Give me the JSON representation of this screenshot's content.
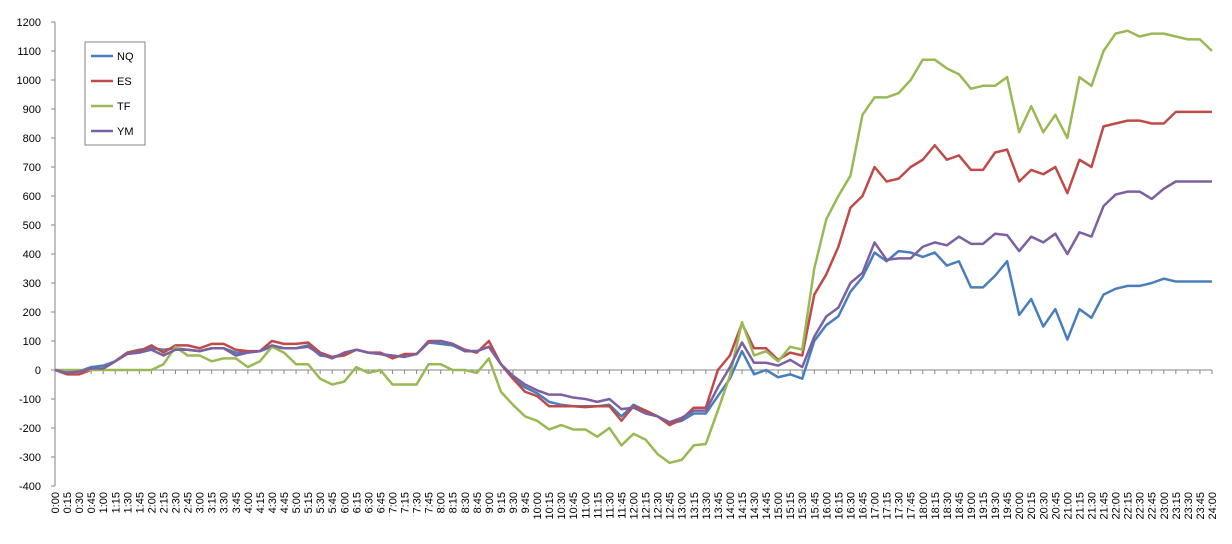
{
  "chart_data": {
    "type": "line",
    "categories": [
      "0:00",
      "0:15",
      "0:30",
      "0:45",
      "1:00",
      "1:15",
      "1:30",
      "1:45",
      "2:00",
      "2:15",
      "2:30",
      "2:45",
      "3:00",
      "3:15",
      "3:30",
      "3:45",
      "4:00",
      "4:15",
      "4:30",
      "4:45",
      "5:00",
      "5:15",
      "5:30",
      "5:45",
      "6:00",
      "6:15",
      "6:30",
      "6:45",
      "7:00",
      "7:15",
      "7:30",
      "7:45",
      "8:00",
      "8:15",
      "8:30",
      "8:45",
      "9:00",
      "9:15",
      "9:30",
      "9:45",
      "10:00",
      "10:15",
      "10:30",
      "10:45",
      "11:00",
      "11:15",
      "11:30",
      "11:45",
      "12:00",
      "12:15",
      "12:30",
      "12:45",
      "13:00",
      "13:15",
      "13:30",
      "13:45",
      "14:00",
      "14:15",
      "14:30",
      "14:45",
      "15:00",
      "15:15",
      "15:30",
      "15:45",
      "16:00",
      "16:15",
      "16:30",
      "16:45",
      "17:00",
      "17:15",
      "17:30",
      "17:45",
      "18:00",
      "18:15",
      "18:30",
      "18:45",
      "19:00",
      "19:15",
      "19:30",
      "19:45",
      "20:00",
      "20:15",
      "20:30",
      "20:45",
      "21:00",
      "21:15",
      "21:30",
      "21:45",
      "22:00",
      "22:15",
      "22:30",
      "22:45",
      "23:00",
      "23:15",
      "23:30",
      "23:45",
      "24:00"
    ],
    "series": [
      {
        "name": "NQ",
        "color": "#4a7ebb",
        "values": [
          0,
          -5,
          -5,
          10,
          15,
          30,
          60,
          70,
          75,
          70,
          75,
          70,
          65,
          75,
          75,
          60,
          60,
          65,
          80,
          75,
          75,
          85,
          50,
          45,
          55,
          70,
          60,
          55,
          45,
          50,
          55,
          95,
          90,
          85,
          65,
          65,
          80,
          20,
          -30,
          -60,
          -80,
          -110,
          -120,
          -125,
          -125,
          -125,
          -120,
          -160,
          -120,
          -140,
          -160,
          -185,
          -175,
          -150,
          -150,
          -90,
          -30,
          65,
          -15,
          0,
          -25,
          -15,
          -30,
          100,
          155,
          185,
          270,
          320,
          405,
          375,
          410,
          405,
          390,
          405,
          360,
          375,
          285,
          285,
          325,
          375,
          190,
          245,
          150,
          210,
          105,
          210,
          180,
          260,
          280,
          290,
          290,
          300,
          315,
          305,
          305,
          305,
          305
        ]
      },
      {
        "name": "ES",
        "color": "#be4b48",
        "values": [
          0,
          -15,
          -15,
          0,
          5,
          30,
          60,
          65,
          85,
          60,
          85,
          85,
          75,
          90,
          90,
          70,
          65,
          65,
          100,
          90,
          90,
          95,
          60,
          45,
          50,
          70,
          60,
          60,
          40,
          55,
          55,
          100,
          100,
          90,
          70,
          60,
          100,
          20,
          -30,
          -75,
          -90,
          -125,
          -125,
          -125,
          -128,
          -125,
          -125,
          -175,
          -125,
          -140,
          -160,
          -190,
          -170,
          -130,
          -130,
          0,
          50,
          160,
          75,
          75,
          35,
          60,
          50,
          260,
          330,
          425,
          560,
          600,
          700,
          650,
          660,
          700,
          725,
          775,
          725,
          740,
          690,
          690,
          750,
          760,
          650,
          690,
          675,
          700,
          610,
          725,
          700,
          840,
          850,
          860,
          860,
          850,
          850,
          890,
          890,
          890,
          890
        ]
      },
      {
        "name": "TF",
        "color": "#98b954",
        "values": [
          0,
          0,
          0,
          0,
          0,
          0,
          0,
          0,
          0,
          20,
          80,
          50,
          50,
          30,
          40,
          40,
          10,
          30,
          80,
          60,
          20,
          20,
          -30,
          -50,
          -40,
          10,
          -10,
          0,
          -50,
          -50,
          -50,
          20,
          20,
          0,
          0,
          -10,
          40,
          -75,
          -120,
          -160,
          -175,
          -205,
          -190,
          -205,
          -205,
          -230,
          -200,
          -260,
          -220,
          -240,
          -290,
          -320,
          -310,
          -260,
          -255,
          -140,
          -20,
          165,
          50,
          65,
          30,
          80,
          70,
          350,
          520,
          600,
          670,
          880,
          940,
          940,
          955,
          1000,
          1070,
          1070,
          1040,
          1020,
          970,
          980,
          980,
          1010,
          820,
          910,
          820,
          880,
          800,
          1010,
          980,
          1100,
          1160,
          1170,
          1150,
          1160,
          1160,
          1150,
          1140,
          1140,
          1100
        ]
      },
      {
        "name": "YM",
        "color": "#7d60a0",
        "values": [
          0,
          -10,
          -5,
          5,
          5,
          30,
          55,
          60,
          70,
          50,
          70,
          70,
          65,
          75,
          75,
          50,
          60,
          65,
          85,
          75,
          75,
          80,
          55,
          40,
          60,
          70,
          60,
          55,
          50,
          45,
          55,
          95,
          100,
          90,
          65,
          65,
          80,
          20,
          -20,
          -50,
          -70,
          -85,
          -85,
          -95,
          -100,
          -110,
          -100,
          -135,
          -130,
          -150,
          -160,
          -180,
          -165,
          -140,
          -140,
          -60,
          10,
          95,
          25,
          25,
          15,
          35,
          10,
          115,
          185,
          215,
          300,
          335,
          440,
          380,
          385,
          385,
          425,
          440,
          430,
          460,
          435,
          435,
          470,
          465,
          410,
          460,
          440,
          470,
          400,
          475,
          460,
          565,
          605,
          615,
          615,
          590,
          625,
          650,
          650,
          650,
          650
        ]
      }
    ],
    "ylim": [
      -400,
      1200
    ],
    "yticks": [
      -400,
      -300,
      -200,
      -100,
      0,
      100,
      200,
      300,
      400,
      500,
      600,
      700,
      800,
      900,
      1000,
      1100,
      1200
    ],
    "grid": false,
    "legend": "top-left"
  }
}
